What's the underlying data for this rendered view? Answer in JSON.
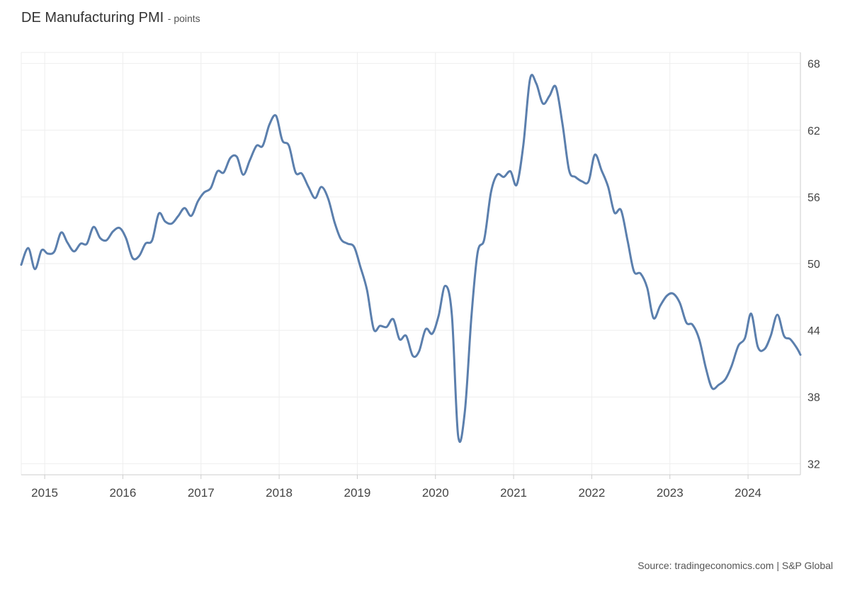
{
  "header": {
    "title": "DE Manufacturing PMI",
    "unit": "- points"
  },
  "footer": {
    "source": "Source: tradingeconomics.com | S&P Global"
  },
  "chart_data": {
    "type": "line",
    "title": "DE Manufacturing PMI",
    "ylabel": "points",
    "xlim": [
      2014.7,
      2024.67
    ],
    "ylim": [
      31,
      69
    ],
    "y_ticks": [
      32,
      38,
      44,
      50,
      56,
      62,
      68
    ],
    "x_ticks": [
      2015,
      2016,
      2017,
      2018,
      2019,
      2020,
      2021,
      2022,
      2023,
      2024
    ],
    "grid": true,
    "line_color": "#5b7fad",
    "series": [
      {
        "x": [
          2014.7,
          2014.79,
          2014.875,
          2014.96,
          2015.04,
          2015.125,
          2015.21,
          2015.29,
          2015.375,
          2015.46,
          2015.54,
          2015.625,
          2015.71,
          2015.79,
          2015.875,
          2015.96,
          2016.04,
          2016.125,
          2016.21,
          2016.29,
          2016.375,
          2016.46,
          2016.54,
          2016.625,
          2016.71,
          2016.79,
          2016.875,
          2016.96,
          2017.04,
          2017.125,
          2017.21,
          2017.29,
          2017.375,
          2017.46,
          2017.54,
          2017.625,
          2017.71,
          2017.79,
          2017.875,
          2017.96,
          2018.04,
          2018.125,
          2018.21,
          2018.29,
          2018.375,
          2018.46,
          2018.54,
          2018.625,
          2018.71,
          2018.79,
          2018.875,
          2018.96,
          2019.04,
          2019.125,
          2019.21,
          2019.29,
          2019.375,
          2019.46,
          2019.54,
          2019.625,
          2019.71,
          2019.79,
          2019.875,
          2019.96,
          2020.04,
          2020.125,
          2020.21,
          2020.29,
          2020.375,
          2020.46,
          2020.54,
          2020.625,
          2020.71,
          2020.79,
          2020.875,
          2020.96,
          2021.04,
          2021.125,
          2021.21,
          2021.29,
          2021.375,
          2021.46,
          2021.54,
          2021.625,
          2021.71,
          2021.79,
          2021.875,
          2021.96,
          2022.04,
          2022.125,
          2022.21,
          2022.29,
          2022.375,
          2022.46,
          2022.54,
          2022.625,
          2022.71,
          2022.79,
          2022.875,
          2022.96,
          2023.04,
          2023.125,
          2023.21,
          2023.29,
          2023.375,
          2023.46,
          2023.54,
          2023.625,
          2023.71,
          2023.79,
          2023.875,
          2023.96,
          2024.04,
          2024.125,
          2024.21,
          2024.29,
          2024.375,
          2024.46,
          2024.54,
          2024.625,
          2024.67
        ],
        "values": [
          49.9,
          51.4,
          49.5,
          51.2,
          50.9,
          51.1,
          52.8,
          51.9,
          51.1,
          51.8,
          51.8,
          53.3,
          52.3,
          52.1,
          52.9,
          53.2,
          52.3,
          50.5,
          50.7,
          51.8,
          52.1,
          54.5,
          53.8,
          53.6,
          54.3,
          55.0,
          54.3,
          55.6,
          56.4,
          56.8,
          58.3,
          58.2,
          59.5,
          59.6,
          58.0,
          59.3,
          60.6,
          60.6,
          62.5,
          63.3,
          61.1,
          60.6,
          58.2,
          58.1,
          56.9,
          55.9,
          56.9,
          55.9,
          53.7,
          52.2,
          51.8,
          51.5,
          49.7,
          47.6,
          44.1,
          44.4,
          44.3,
          45.0,
          43.2,
          43.5,
          41.7,
          42.1,
          44.1,
          43.7,
          45.3,
          48.0,
          45.4,
          34.5,
          36.6,
          45.2,
          51.0,
          52.2,
          56.4,
          58.0,
          57.8,
          58.3,
          57.1,
          60.7,
          66.6,
          66.2,
          64.4,
          65.1,
          65.9,
          62.6,
          58.4,
          57.8,
          57.4,
          57.4,
          59.8,
          58.4,
          56.9,
          54.6,
          54.8,
          52.0,
          49.3,
          49.1,
          47.8,
          45.1,
          46.2,
          47.1,
          47.3,
          46.5,
          44.7,
          44.5,
          43.2,
          40.6,
          38.8,
          39.1,
          39.6,
          40.8,
          42.6,
          43.3,
          45.5,
          42.5,
          42.3,
          43.5,
          45.4,
          43.5,
          43.2,
          42.4,
          41.8
        ]
      }
    ]
  }
}
